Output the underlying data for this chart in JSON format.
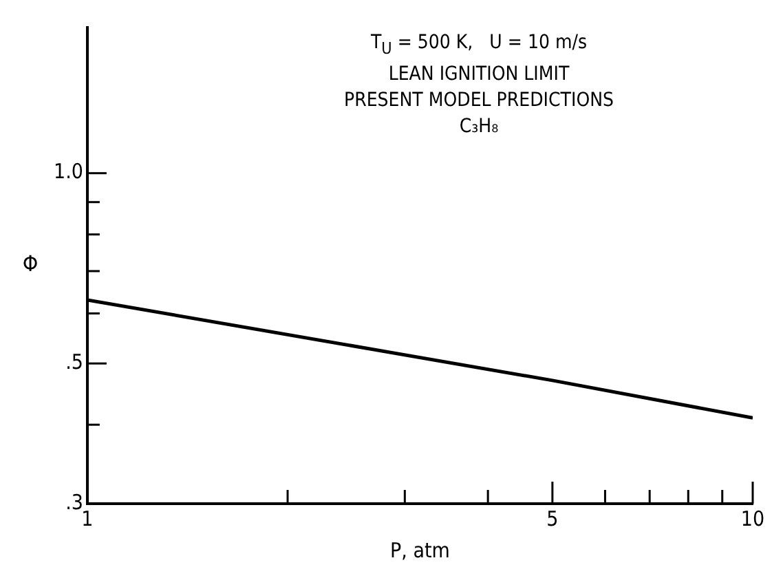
{
  "chart_data": {
    "type": "line",
    "title": "T$_{U}$ = 500 K,   U = 10 m/s",
    "annotations": [
      "LEAN IGNITION LIMIT",
      "PRESENT MODEL PREDICTIONS",
      "C₃H₈"
    ],
    "xlabel": "P, atm",
    "ylabel": "Φ",
    "x": [
      1,
      5,
      10
    ],
    "series": [
      {
        "color": "#000000",
        "values": [
          0.63,
          0.47,
          0.41
        ]
      }
    ],
    "log": "xy",
    "xlim": [
      1,
      10
    ],
    "ylim": [
      0.3,
      1.7
    ],
    "xticks": [
      1,
      {
        "value": 2,
        "label": null
      },
      {
        "value": 3,
        "label": null
      },
      {
        "value": 4,
        "label": null
      },
      5,
      {
        "value": 6,
        "label": null
      },
      {
        "value": 7,
        "label": null
      },
      {
        "value": 8,
        "label": null
      },
      {
        "value": 9,
        "label": null
      },
      10
    ],
    "yticks": [
      {
        "value": 0.3,
        "label": ".3"
      },
      {
        "value": 0.4,
        "label": null
      },
      {
        "value": 0.5,
        "label": ".5"
      },
      {
        "value": 0.6,
        "label": null
      },
      {
        "value": 0.7,
        "label": null
      },
      {
        "value": 0.8,
        "label": null
      },
      {
        "value": 0.9,
        "label": null
      },
      {
        "value": 1.0,
        "label": "1.0"
      }
    ],
    "marker": "none",
    "line_style": "solid",
    "legend": false,
    "grid": false
  }
}
